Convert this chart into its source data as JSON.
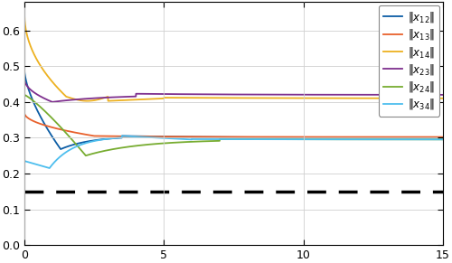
{
  "xlim": [
    0,
    15
  ],
  "ylim": [
    0,
    0.68
  ],
  "yticks": [
    0,
    0.1,
    0.2,
    0.3,
    0.4,
    0.5,
    0.6
  ],
  "xticks": [
    0,
    5,
    10,
    15
  ],
  "dashed_line_y": 0.15,
  "colors": {
    "x12": "#0C5DA5",
    "x13": "#E8612C",
    "x14": "#EDB120",
    "x23": "#7E2F8E",
    "x24": "#77AC30",
    "x34": "#4DBEEE"
  },
  "figsize": [
    5.0,
    2.91
  ],
  "dpi": 100
}
